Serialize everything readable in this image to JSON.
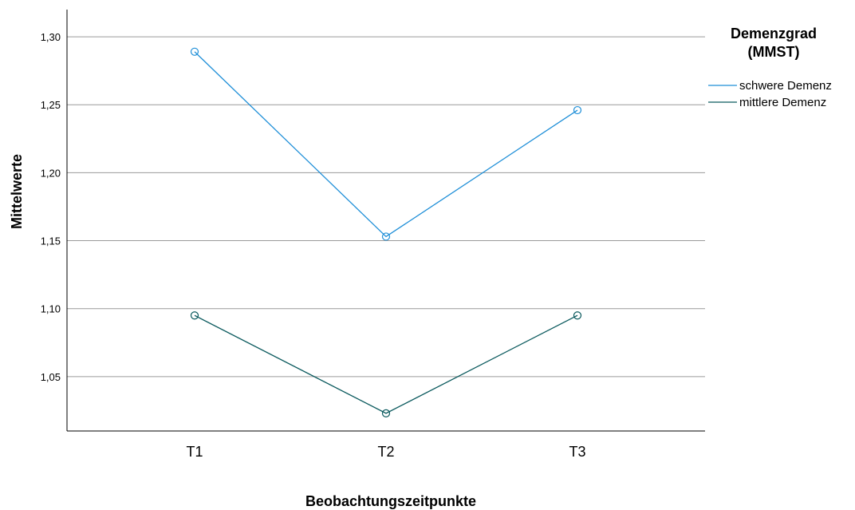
{
  "chart_data": {
    "type": "line",
    "categories": [
      "T1",
      "T2",
      "T3"
    ],
    "series": [
      {
        "name": "schwere Demenz",
        "values": [
          1.289,
          1.153,
          1.246
        ],
        "color": "#1f8fd8"
      },
      {
        "name": "mittlere Demenz",
        "values": [
          1.095,
          1.023,
          1.095
        ],
        "color": "#0b5a5e"
      }
    ],
    "xlabel": "Beobachtungszeitpunkte",
    "ylabel": "Mittelwerte",
    "ylim": [
      1.01,
      1.32
    ],
    "yticks": [
      "1,05",
      "1,10",
      "1,15",
      "1,20",
      "1,25",
      "1,30"
    ],
    "ytick_values": [
      1.05,
      1.1,
      1.15,
      1.2,
      1.25,
      1.3
    ],
    "grid": true,
    "legend": {
      "title_line1": "Demenzgrad",
      "title_line2": "(MMST)",
      "placement": "right"
    }
  }
}
